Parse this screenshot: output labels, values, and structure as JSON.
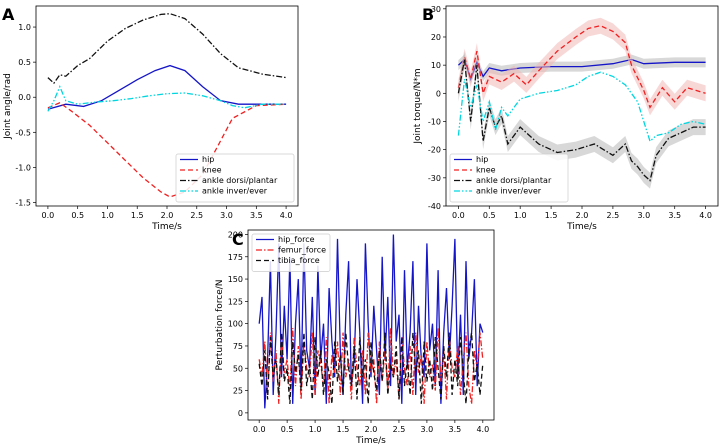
{
  "figure_title": "",
  "colors": {
    "blue": "#1515c8",
    "red": "#f02020",
    "black": "#111111",
    "cyan": "#00d6e0",
    "band_gray": "#b8b8b8",
    "band_red": "#f2b6b6"
  },
  "chart_data": [
    {
      "panel": "A",
      "type": "line",
      "title": "",
      "xlabel": "Time/s",
      "ylabel": "Joint angle/rad",
      "xlim": [
        -0.2,
        4.2
      ],
      "ylim": [
        -1.55,
        1.3
      ],
      "xticks": [
        0.0,
        0.5,
        1.0,
        1.5,
        2.0,
        2.5,
        3.0,
        3.5,
        4.0
      ],
      "xtick_labels": [
        "0.0",
        "0.5",
        "1.0",
        "1.5",
        "2.0",
        "2.5",
        "3.0",
        "3.5",
        "4.0"
      ],
      "yticks": [
        -1.5,
        -1.0,
        -0.5,
        0.0,
        0.5,
        1.0
      ],
      "ytick_labels": [
        "-1.5",
        "-1.0",
        "-0.5",
        "0.0",
        "0.5",
        "1.0"
      ],
      "legend_position": "lower-right",
      "legend": [
        "hip",
        "knee",
        "ankle dorsi/plantar",
        "ankle inver/ever"
      ],
      "series": [
        {
          "name": "hip",
          "color": "#1515c8",
          "dash": "solid",
          "x": [
            0.0,
            0.3,
            0.6,
            0.9,
            1.2,
            1.5,
            1.8,
            2.05,
            2.3,
            2.6,
            2.9,
            3.2,
            3.6,
            4.0
          ],
          "y": [
            -0.17,
            -0.1,
            -0.13,
            -0.05,
            0.1,
            0.25,
            0.38,
            0.45,
            0.38,
            0.15,
            -0.05,
            -0.1,
            -0.1,
            -0.1
          ]
        },
        {
          "name": "knee",
          "color": "#f02020",
          "dash": "dashed",
          "x": [
            0.0,
            0.2,
            0.4,
            0.7,
            1.0,
            1.3,
            1.6,
            1.9,
            2.05,
            2.3,
            2.6,
            2.85,
            3.1,
            3.5,
            4.0
          ],
          "y": [
            -0.15,
            -0.08,
            -0.2,
            -0.4,
            -0.65,
            -0.9,
            -1.15,
            -1.35,
            -1.42,
            -1.35,
            -1.1,
            -0.7,
            -0.3,
            -0.12,
            -0.1
          ]
        },
        {
          "name": "ankle dorsi/plantar",
          "color": "#111111",
          "dash": "dashdot",
          "x": [
            0.0,
            0.1,
            0.2,
            0.3,
            0.5,
            0.7,
            1.0,
            1.3,
            1.6,
            1.9,
            2.05,
            2.3,
            2.6,
            2.9,
            3.2,
            3.6,
            4.0
          ],
          "y": [
            0.28,
            0.2,
            0.32,
            0.3,
            0.45,
            0.55,
            0.8,
            0.98,
            1.1,
            1.18,
            1.19,
            1.12,
            0.9,
            0.62,
            0.42,
            0.33,
            0.28
          ]
        },
        {
          "name": "ankle inver/ever",
          "color": "#00d6e0",
          "dash": "dashdotdot",
          "x": [
            0.0,
            0.1,
            0.2,
            0.3,
            0.5,
            0.8,
            1.1,
            1.4,
            1.7,
            2.0,
            2.3,
            2.6,
            2.9,
            3.1,
            3.3,
            3.6,
            4.0
          ],
          "y": [
            -0.2,
            -0.05,
            0.15,
            -0.05,
            -0.1,
            -0.07,
            -0.05,
            -0.02,
            0.02,
            0.05,
            0.06,
            0.02,
            -0.05,
            -0.12,
            -0.15,
            -0.1,
            -0.1
          ]
        }
      ]
    },
    {
      "panel": "B",
      "type": "line",
      "title": "",
      "xlabel": "Time/s",
      "ylabel": "Joint torque/N*m",
      "xlim": [
        -0.2,
        4.2
      ],
      "ylim": [
        -40,
        31
      ],
      "xticks": [
        0.0,
        0.5,
        1.0,
        1.5,
        2.0,
        2.5,
        3.0,
        3.5,
        4.0
      ],
      "xtick_labels": [
        "0.0",
        "0.5",
        "1.0",
        "1.5",
        "2.0",
        "2.5",
        "3.0",
        "3.5",
        "4.0"
      ],
      "yticks": [
        -40,
        -30,
        -20,
        -10,
        0,
        10,
        20,
        30
      ],
      "ytick_labels": [
        "-40",
        "-30",
        "-20",
        "-10",
        "0",
        "10",
        "20",
        "30"
      ],
      "legend_position": "lower-left",
      "legend": [
        "hip",
        "knee",
        "ankle dorsi/plantar",
        "ankle inver/ever"
      ],
      "series": [
        {
          "name": "hip",
          "color": "#1515c8",
          "dash": "solid",
          "x": [
            0.0,
            0.1,
            0.2,
            0.3,
            0.4,
            0.5,
            0.7,
            1.0,
            1.5,
            2.0,
            2.5,
            2.8,
            3.0,
            3.5,
            4.0
          ],
          "y": [
            10,
            12,
            5,
            11,
            6,
            9,
            8,
            9,
            9.5,
            9.5,
            10.5,
            12,
            10.5,
            11,
            11
          ]
        },
        {
          "name": "knee",
          "color": "#f02020",
          "dash": "dashed",
          "x": [
            0.0,
            0.1,
            0.2,
            0.3,
            0.4,
            0.5,
            0.7,
            0.9,
            1.1,
            1.3,
            1.6,
            1.9,
            2.1,
            2.3,
            2.5,
            2.7,
            2.8,
            3.0,
            3.1,
            3.3,
            3.5,
            3.7,
            4.0
          ],
          "y": [
            2,
            13,
            5,
            15,
            0,
            6,
            4,
            7,
            3,
            8,
            15,
            20,
            23,
            24,
            22,
            18,
            10,
            1,
            -5,
            2,
            -3,
            2,
            0
          ]
        },
        {
          "name": "ankle dorsi/plantar",
          "color": "#111111",
          "dash": "dashdot",
          "x": [
            0.0,
            0.1,
            0.2,
            0.3,
            0.4,
            0.5,
            0.6,
            0.7,
            0.8,
            1.0,
            1.3,
            1.6,
            1.9,
            2.2,
            2.5,
            2.7,
            2.8,
            2.9,
            3.0,
            3.1,
            3.2,
            3.4,
            3.6,
            3.8,
            4.0
          ],
          "y": [
            0,
            12,
            -10,
            10,
            -17,
            -5,
            -12,
            -8,
            -18,
            -12,
            -18,
            -21,
            -20,
            -18,
            -22,
            -18,
            -24,
            -26,
            -29,
            -31,
            -22,
            -16,
            -14,
            -12,
            -12
          ]
        },
        {
          "name": "ankle inver/ever",
          "color": "#00d6e0",
          "dash": "dashdotdot",
          "x": [
            0.0,
            0.1,
            0.2,
            0.3,
            0.4,
            0.5,
            0.6,
            0.7,
            0.8,
            1.0,
            1.3,
            1.6,
            1.9,
            2.1,
            2.3,
            2.5,
            2.7,
            2.9,
            3.1,
            3.2,
            3.4,
            3.6,
            3.8,
            4.0
          ],
          "y": [
            -15,
            5,
            -5,
            3,
            -10,
            -3,
            -13,
            -5,
            -8,
            -2,
            0,
            1,
            3,
            6,
            7.5,
            6,
            3,
            -3,
            -17,
            -15,
            -14,
            -11,
            -10,
            -11
          ]
        }
      ]
    },
    {
      "panel": "C",
      "type": "line",
      "title": "",
      "xlabel": "Time/s",
      "ylabel": "Perturbation force/N",
      "xlim": [
        -0.2,
        4.2
      ],
      "ylim": [
        -8,
        205
      ],
      "xticks": [
        0.0,
        0.5,
        1.0,
        1.5,
        2.0,
        2.5,
        3.0,
        3.5,
        4.0
      ],
      "xtick_labels": [
        "0.0",
        "0.5",
        "1.0",
        "1.5",
        "2.0",
        "2.5",
        "3.0",
        "3.5",
        "4.0"
      ],
      "yticks": [
        0,
        25,
        50,
        75,
        100,
        125,
        150,
        175,
        200
      ],
      "ytick_labels": [
        "0",
        "25",
        "50",
        "75",
        "100",
        "125",
        "150",
        "175",
        "200"
      ],
      "legend_position": "top-left",
      "legend": [
        "hip_force",
        "femur_force",
        "tibia_force"
      ],
      "series": [
        {
          "name": "hip_force",
          "color": "#1515c8",
          "dash": "solid",
          "x_start": 0.0,
          "x_step": 0.05,
          "y": [
            100,
            130,
            5,
            60,
            170,
            20,
            90,
            190,
            40,
            120,
            60,
            175,
            10,
            100,
            150,
            30,
            190,
            70,
            50,
            130,
            20,
            165,
            60,
            100,
            10,
            140,
            80,
            40,
            195,
            70,
            20,
            110,
            170,
            30,
            60,
            150,
            90,
            10,
            190,
            100,
            40,
            120,
            70,
            20,
            175,
            60,
            130,
            30,
            200,
            80,
            110,
            10,
            160,
            50,
            90,
            170,
            20,
            120,
            60,
            40,
            190,
            70,
            100,
            30,
            160,
            10,
            90,
            140,
            60,
            120,
            195,
            40,
            110,
            20,
            170,
            60,
            90,
            150,
            30,
            100,
            90
          ]
        },
        {
          "name": "femur_force",
          "color": "#f02020",
          "dash": "dashdot",
          "x_start": 0.0,
          "x_step": 0.05,
          "y": [
            60,
            40,
            80,
            20,
            90,
            35,
            70,
            10,
            85,
            45,
            60,
            25,
            95,
            30,
            75,
            15,
            80,
            50,
            40,
            90,
            20,
            70,
            55,
            30,
            85,
            10,
            65,
            45,
            80,
            20,
            90,
            40,
            60,
            15,
            85,
            50,
            30,
            70,
            20,
            90,
            45,
            60,
            10,
            80,
            35,
            70,
            25,
            95,
            40,
            60,
            15,
            85,
            50,
            30,
            75,
            20,
            90,
            45,
            65,
            10,
            80,
            40,
            55,
            25,
            95,
            35,
            70,
            15,
            85,
            50,
            40,
            75,
            20,
            60,
            90,
            30,
            10,
            70,
            50,
            90,
            60
          ]
        },
        {
          "name": "tibia_force",
          "color": "#111111",
          "dash": "dashed",
          "x_start": 0.0,
          "x_step": 0.05,
          "y": [
            55,
            30,
            70,
            15,
            85,
            40,
            60,
            20,
            90,
            35,
            50,
            10,
            80,
            45,
            65,
            25,
            90,
            30,
            55,
            15,
            85,
            40,
            70,
            20,
            60,
            45,
            10,
            80,
            35,
            65,
            20,
            90,
            50,
            30,
            75,
            15,
            85,
            40,
            60,
            10,
            80,
            45,
            25,
            70,
            35,
            90,
            20,
            55,
            40,
            75,
            15,
            85,
            30,
            60,
            20,
            90,
            45,
            70,
            10,
            80,
            35,
            60,
            25,
            85,
            50,
            15,
            75,
            40,
            90,
            20,
            60,
            30,
            85,
            45,
            10,
            70,
            90,
            35,
            55,
            20,
            55
          ]
        }
      ]
    }
  ]
}
